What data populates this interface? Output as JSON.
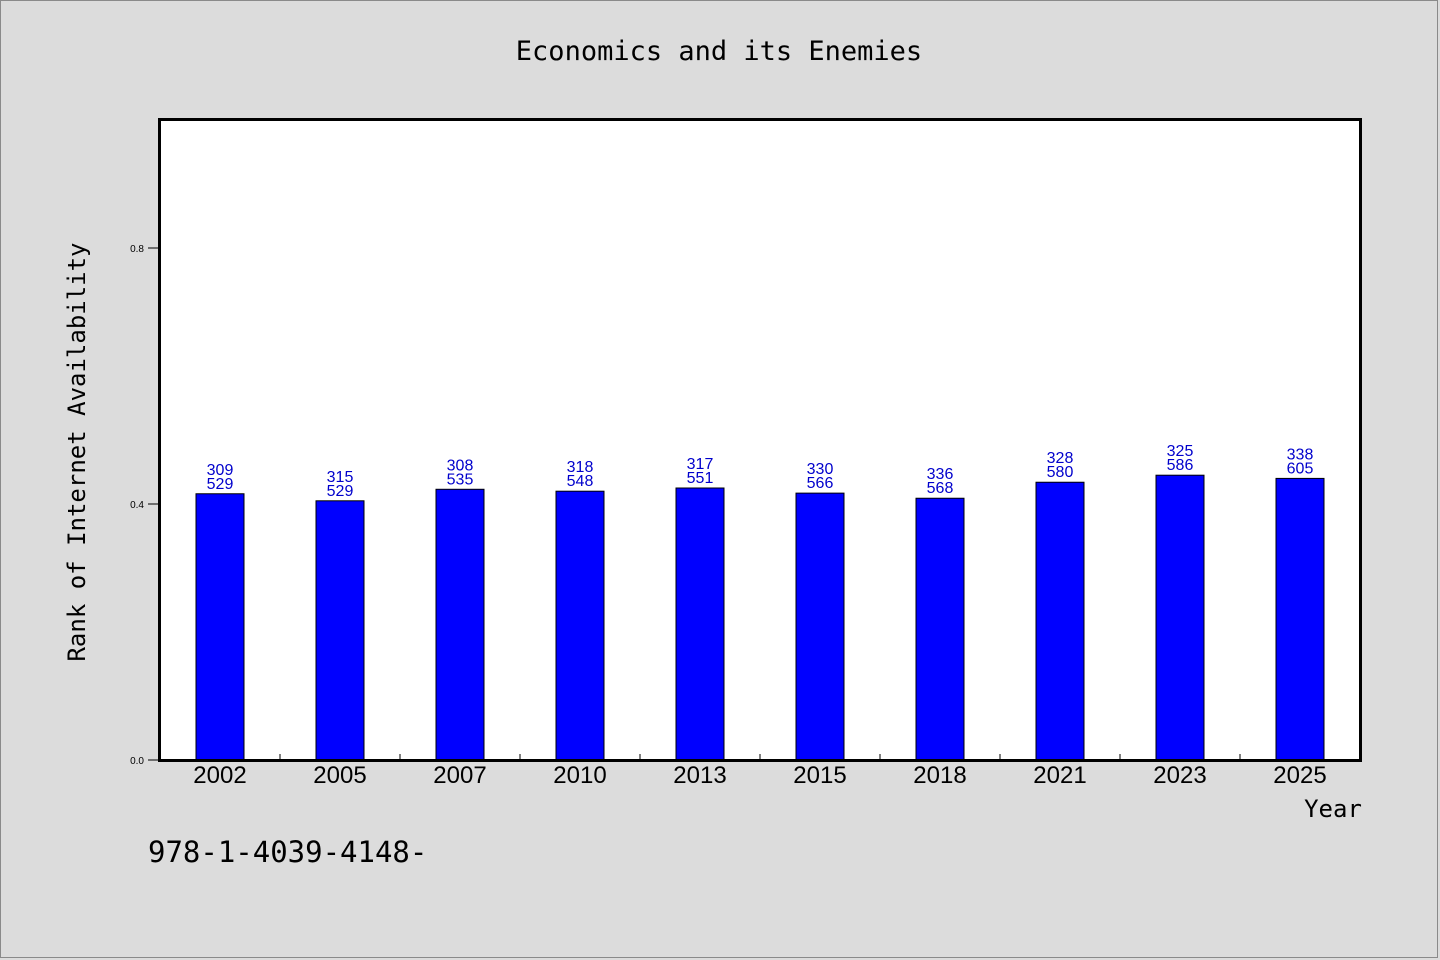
{
  "chart_data": {
    "type": "bar",
    "title": "Economics and its Enemies",
    "xlabel": "Year",
    "ylabel": "Rank of Internet Availability",
    "categories": [
      "2002",
      "2005",
      "2007",
      "2010",
      "2013",
      "2015",
      "2018",
      "2021",
      "2023",
      "2025"
    ],
    "values": [
      0.416,
      0.405,
      0.423,
      0.42,
      0.425,
      0.417,
      0.409,
      0.434,
      0.445,
      0.44
    ],
    "data_labels_top": [
      "309",
      "315",
      "308",
      "318",
      "317",
      "330",
      "336",
      "328",
      "325",
      "338"
    ],
    "data_labels_bottom": [
      "529",
      "529",
      "535",
      "548",
      "551",
      "566",
      "568",
      "580",
      "586",
      "605"
    ],
    "ylim": [
      0,
      1.0
    ],
    "yticks": [
      0.0,
      0.4,
      0.8
    ],
    "ytick_labels": [
      "0.0",
      "0.4",
      "0.8"
    ],
    "bar_color": "#0000ff",
    "label_color": "#0000cc",
    "grid": false,
    "legend": "none"
  },
  "footer_text": "978-1-4039-4148-"
}
